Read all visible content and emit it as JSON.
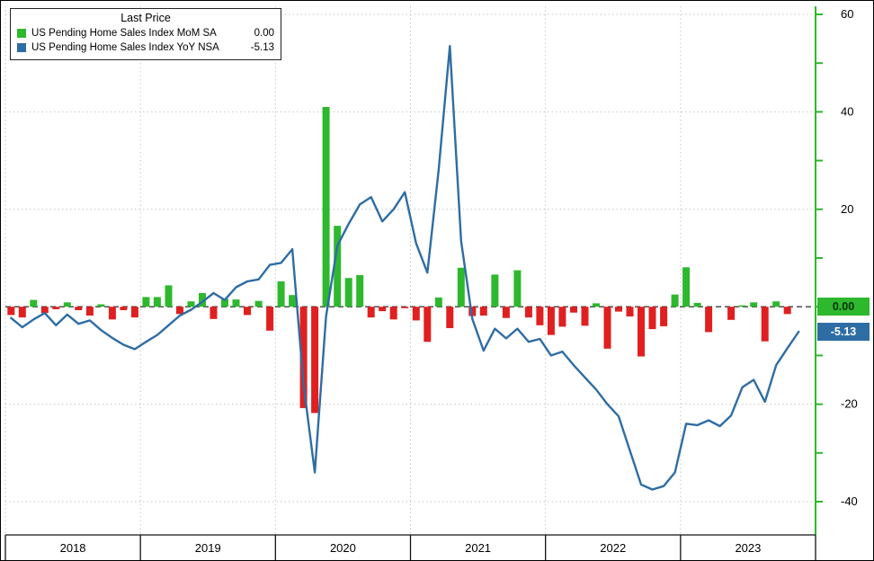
{
  "window": {
    "background": "#ffffff"
  },
  "legend": {
    "title": "Last Price",
    "rows": [
      {
        "name": "US Pending Home Sales Index MoM SA",
        "value": "0.00",
        "color": "#2eb82e"
      },
      {
        "name": "US Pending Home Sales Index YoY NSA",
        "value": "-5.13",
        "color": "#2e6da4"
      }
    ]
  },
  "axes": {
    "y_ticks": [
      {
        "v": 60,
        "label": "60"
      },
      {
        "v": 40,
        "label": "40"
      },
      {
        "v": 20,
        "label": "20"
      },
      {
        "v": 0,
        "label": ""
      },
      {
        "v": -20,
        "label": "-20"
      },
      {
        "v": -40,
        "label": "-40"
      }
    ],
    "x_labels": [
      "2018",
      "2019",
      "2020",
      "2021",
      "2022",
      "2023"
    ],
    "axis_color": "#2eb82e",
    "badges": [
      {
        "id": "mom",
        "text": "0.00",
        "bg": "#2eb82e",
        "fg": "#003300",
        "value": 0.0
      },
      {
        "id": "yoy",
        "text": "-5.13",
        "bg": "#2e6da4",
        "fg": "#ffffff",
        "value": -5.13
      }
    ]
  },
  "chart_data": {
    "type": "bar+line",
    "title": "",
    "x_frequency": "monthly",
    "x_start": "2018-01",
    "x_end": "2023-11",
    "x_tick_labels": [
      "2018",
      "2019",
      "2020",
      "2021",
      "2022",
      "2023"
    ],
    "y_ticks": [
      60,
      40,
      20,
      0,
      -20,
      -40
    ],
    "ylim": [
      -45,
      62
    ],
    "grid": "dotted",
    "legend_position": "top-left",
    "series": [
      {
        "name": "US Pending Home Sales Index MoM SA",
        "type": "bar",
        "unit": "percent",
        "last": 0.0,
        "pos_color": "#2eb82e",
        "neg_color": "#e02020",
        "values": [
          -1.7,
          -2.2,
          1.4,
          -1.3,
          -0.5,
          0.9,
          -0.7,
          -1.8,
          0.5,
          -2.6,
          -0.7,
          -2.2,
          2.0,
          2.0,
          4.4,
          -1.5,
          1.1,
          2.8,
          -2.5,
          1.6,
          1.5,
          -1.7,
          1.2,
          -4.9,
          5.2,
          2.4,
          -20.8,
          -21.8,
          41.0,
          16.6,
          5.9,
          6.5,
          -2.2,
          -0.9,
          -2.6,
          -0.3,
          -2.8,
          -7.2,
          1.9,
          -4.4,
          8.0,
          -1.9,
          -1.8,
          6.6,
          -2.3,
          7.5,
          -2.2,
          -3.8,
          -5.8,
          -4.1,
          -1.2,
          -3.9,
          0.7,
          -8.6,
          -1.0,
          -2.0,
          -10.2,
          -4.6,
          -4.0,
          2.5,
          8.1,
          0.8,
          -5.2,
          0.0,
          -2.7,
          0.3,
          0.9,
          -7.1,
          1.1,
          -1.5,
          0.0
        ]
      },
      {
        "name": "US Pending Home Sales Index YoY NSA",
        "type": "line",
        "unit": "percent",
        "last": -5.13,
        "color": "#2e6da4",
        "values": [
          -2.3,
          -4.2,
          -2.6,
          -1.3,
          -3.8,
          -1.6,
          -3.5,
          -2.8,
          -4.8,
          -6.4,
          -7.8,
          -8.7,
          -7.2,
          -5.8,
          -3.8,
          -1.8,
          -0.6,
          1.0,
          2.8,
          1.4,
          4.0,
          5.2,
          5.6,
          8.6,
          9.0,
          11.8,
          -16.0,
          -34.0,
          -2.0,
          12.5,
          17.0,
          21.0,
          22.5,
          17.5,
          20.0,
          23.5,
          13.0,
          7.0,
          28.0,
          53.5,
          13.5,
          -2.5,
          -9.0,
          -4.5,
          -6.5,
          -4.5,
          -7.2,
          -6.6,
          -10.0,
          -9.2,
          -12.0,
          -14.5,
          -17.0,
          -20.0,
          -22.5,
          -29.5,
          -36.5,
          -37.5,
          -36.8,
          -34.0,
          -24.0,
          -24.3,
          -23.3,
          -24.5,
          -22.3,
          -16.5,
          -15.0,
          -19.5,
          -12.0,
          -8.5,
          -5.13
        ]
      }
    ]
  }
}
